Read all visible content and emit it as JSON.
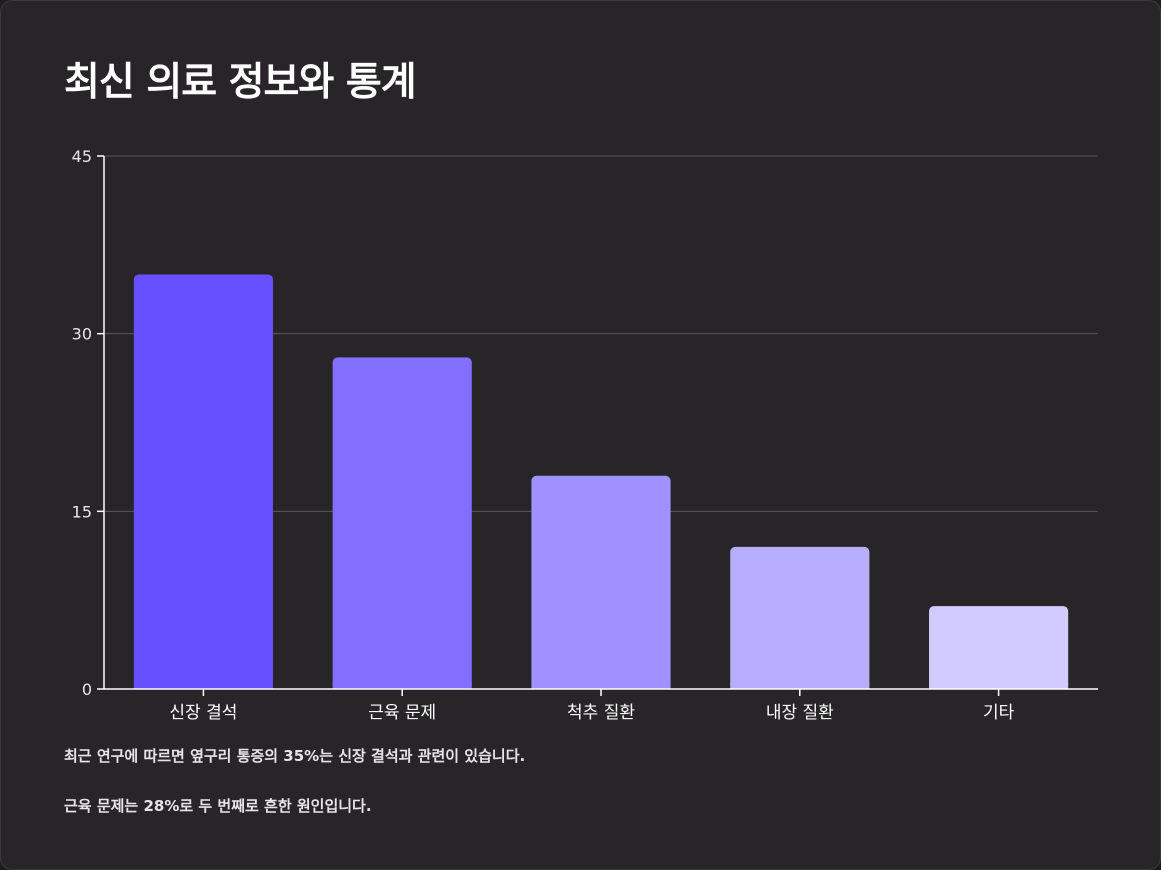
{
  "header": {
    "title": "최신 의료 정보와 통계"
  },
  "chart_data": {
    "type": "bar",
    "title": "",
    "xlabel": "",
    "ylabel": "",
    "categories": [
      "신장 결석",
      "근육 문제",
      "척추 질환",
      "내장 질환",
      "기타"
    ],
    "values": [
      35,
      28,
      18,
      12,
      7
    ],
    "ylim": [
      0,
      45
    ],
    "yticks": [
      0,
      15,
      30,
      45
    ],
    "grid": true,
    "bar_colors": [
      "#6750ff",
      "#836fff",
      "#9f91ff",
      "#b8aeff",
      "#d2cbff"
    ]
  },
  "notes": [
    "최근 연구에 따르면 옆구리 통증의 35%는 신장 결석과 관련이 있습니다.",
    "근육 문제는 28%로 두 번째로 흔한 원인입니다."
  ]
}
